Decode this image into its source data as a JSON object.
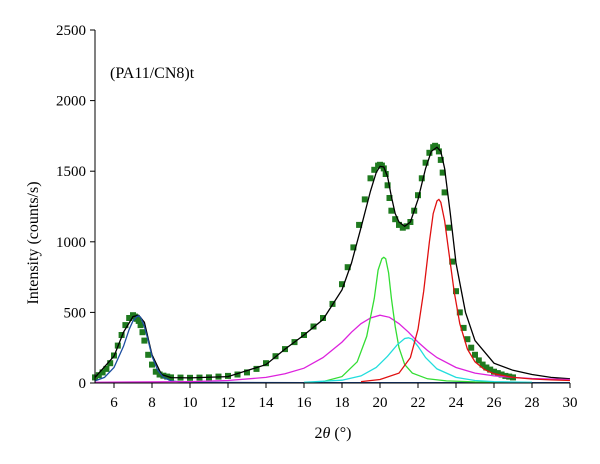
{
  "chart_data": {
    "type": "line",
    "annotation": "(PA11/CN8)t",
    "xlabel_prefix": "2",
    "xlabel_symbol": "θ",
    "xlabel_unit": " (°)",
    "ylabel": "Intensity (counts/s)",
    "xlim": [
      5,
      30
    ],
    "ylim": [
      0,
      2500
    ],
    "xticks": [
      6,
      8,
      10,
      12,
      14,
      16,
      18,
      20,
      22,
      24,
      26,
      28,
      30
    ],
    "yticks": [
      0,
      500,
      1000,
      1500,
      2000,
      2500
    ],
    "grid": false,
    "legend": "none",
    "series": [
      {
        "kind": "scatter",
        "color": "#1f7a1f",
        "x": [
          5.0,
          5.2,
          5.4,
          5.6,
          5.8,
          6.0,
          6.2,
          6.4,
          6.6,
          6.8,
          7.0,
          7.1,
          7.2,
          7.3,
          7.4,
          7.5,
          7.6,
          7.8,
          8.0,
          8.2,
          8.4,
          8.6,
          8.8,
          9.0,
          9.5,
          10,
          10.5,
          11,
          11.5,
          12,
          12.5,
          13,
          13.5,
          14,
          14.5,
          15,
          15.5,
          16,
          16.5,
          17,
          17.5,
          18,
          18.3,
          18.6,
          18.9,
          19.2,
          19.5,
          19.7,
          19.9,
          20.0,
          20.1,
          20.2,
          20.3,
          20.4,
          20.5,
          20.6,
          20.8,
          21.0,
          21.2,
          21.4,
          21.6,
          21.8,
          22.0,
          22.2,
          22.4,
          22.6,
          22.8,
          22.9,
          23.0,
          23.1,
          23.2,
          23.3,
          23.4,
          23.6,
          23.8,
          24.0,
          24.2,
          24.4,
          24.6,
          24.8,
          25.0,
          25.2,
          25.4,
          25.6,
          25.8,
          26.0,
          26.2,
          26.4,
          26.6,
          26.8,
          27.0
        ],
        "y": [
          40,
          55,
          75,
          100,
          140,
          195,
          265,
          340,
          410,
          460,
          480,
          470,
          455,
          440,
          410,
          360,
          300,
          200,
          130,
          80,
          60,
          52,
          45,
          40,
          38,
          37,
          38,
          40,
          45,
          50,
          60,
          75,
          100,
          140,
          190,
          240,
          290,
          340,
          400,
          460,
          560,
          700,
          820,
          960,
          1120,
          1300,
          1450,
          1510,
          1540,
          1545,
          1540,
          1520,
          1480,
          1400,
          1310,
          1220,
          1160,
          1120,
          1100,
          1110,
          1140,
          1220,
          1330,
          1450,
          1560,
          1630,
          1670,
          1680,
          1670,
          1640,
          1580,
          1490,
          1350,
          1100,
          860,
          650,
          500,
          390,
          310,
          250,
          200,
          160,
          130,
          110,
          95,
          80,
          70,
          60,
          50,
          45,
          40
        ]
      },
      {
        "kind": "line",
        "color": "#000000",
        "x": [
          5,
          6,
          6.5,
          7,
          7.3,
          7.6,
          8,
          8.5,
          9,
          10,
          12,
          14,
          15,
          16,
          17,
          18,
          18.5,
          19,
          19.5,
          19.8,
          20.0,
          20.2,
          20.4,
          20.6,
          20.8,
          21.0,
          21.3,
          21.6,
          22.0,
          22.4,
          22.7,
          23.0,
          23.2,
          23.4,
          23.7,
          24.0,
          24.5,
          25,
          26,
          27,
          28,
          29,
          30
        ],
        "y": [
          40,
          190,
          360,
          470,
          480,
          430,
          200,
          60,
          38,
          36,
          45,
          130,
          240,
          340,
          450,
          660,
          850,
          1100,
          1360,
          1490,
          1535,
          1530,
          1460,
          1320,
          1200,
          1140,
          1110,
          1140,
          1300,
          1520,
          1640,
          1670,
          1640,
          1520,
          1200,
          850,
          500,
          300,
          140,
          90,
          60,
          40,
          30
        ]
      },
      {
        "kind": "line",
        "color": "#1c4ea0",
        "x": [
          5,
          5.5,
          6,
          6.5,
          6.8,
          7.0,
          7.2,
          7.3,
          7.4,
          7.6,
          7.8,
          8.0,
          8.3,
          8.6,
          9.0,
          9.5,
          10,
          12,
          16,
          20,
          24,
          28,
          30
        ],
        "y": [
          15,
          40,
          110,
          260,
          380,
          440,
          470,
          475,
          465,
          400,
          300,
          190,
          90,
          40,
          15,
          8,
          5,
          4,
          3,
          3,
          2,
          2,
          2
        ]
      },
      {
        "kind": "line",
        "color": "#dd22dd",
        "x": [
          5,
          10,
          12,
          14,
          15,
          16,
          17,
          18,
          18.5,
          19,
          19.5,
          20,
          20.5,
          21,
          21.5,
          22,
          22.5,
          23,
          24,
          25,
          26,
          27,
          28,
          29,
          30
        ],
        "y": [
          5,
          10,
          18,
          40,
          65,
          105,
          180,
          290,
          360,
          420,
          460,
          480,
          465,
          420,
          360,
          290,
          230,
          180,
          110,
          70,
          50,
          40,
          32,
          28,
          25
        ]
      },
      {
        "kind": "line",
        "color": "#33dd33",
        "x": [
          17,
          18,
          18.8,
          19.3,
          19.7,
          19.9,
          20.1,
          20.2,
          20.3,
          20.45,
          20.6,
          20.8,
          21.0,
          21.3,
          21.7,
          22.5,
          23.5,
          25,
          27
        ],
        "y": [
          10,
          45,
          150,
          330,
          600,
          800,
          880,
          890,
          880,
          780,
          600,
          400,
          250,
          130,
          70,
          30,
          15,
          8,
          5
        ]
      },
      {
        "kind": "line",
        "color": "#22dddd",
        "x": [
          16,
          18,
          19,
          19.8,
          20.4,
          20.9,
          21.3,
          21.5,
          21.7,
          22.0,
          22.4,
          23.0,
          24,
          25,
          26,
          28
        ],
        "y": [
          5,
          20,
          50,
          110,
          190,
          270,
          315,
          320,
          310,
          260,
          180,
          100,
          40,
          18,
          10,
          5
        ]
      },
      {
        "kind": "line",
        "color": "#e01010",
        "x": [
          19,
          20,
          21,
          21.6,
          22.0,
          22.3,
          22.6,
          22.8,
          23.0,
          23.1,
          23.2,
          23.4,
          23.6,
          23.9,
          24.2,
          24.6,
          25,
          25.5,
          26,
          27,
          28,
          29,
          30
        ],
        "y": [
          10,
          25,
          70,
          180,
          380,
          650,
          1000,
          1200,
          1290,
          1300,
          1280,
          1150,
          950,
          650,
          420,
          240,
          150,
          95,
          65,
          40,
          28,
          22,
          18
        ]
      }
    ]
  }
}
